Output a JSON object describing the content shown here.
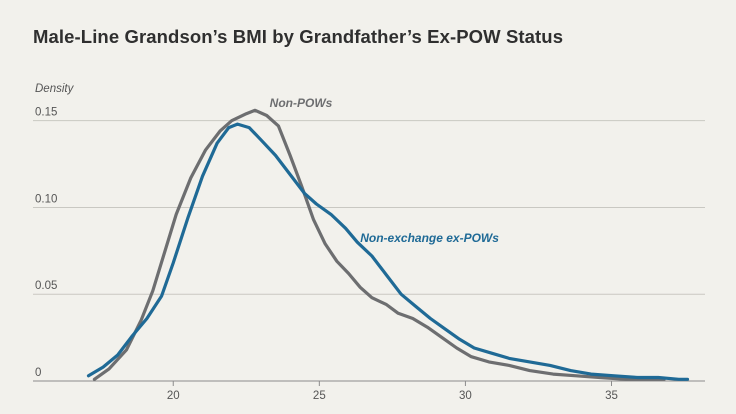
{
  "chart_data": {
    "type": "line",
    "title": "Male-Line Grandson’s BMI by Grandfather’s Ex-POW Status",
    "ylabel": "Density",
    "xlabel": "",
    "xlim": [
      15.2,
      38.2
    ],
    "ylim": [
      0,
      0.155
    ],
    "x_ticks": [
      20,
      25,
      30,
      35
    ],
    "x_tick_labels": [
      "20",
      "25",
      "30",
      "35"
    ],
    "y_ticks": [
      0,
      0.05,
      0.1,
      0.15
    ],
    "y_tick_labels": [
      "0",
      "0.05",
      "0.10",
      "0.15"
    ],
    "grid": "horizontal",
    "series": [
      {
        "name": "Non-POWs",
        "color": "#6d6e70",
        "points": [
          [
            17.3,
            0.001
          ],
          [
            17.8,
            0.007
          ],
          [
            18.4,
            0.018
          ],
          [
            18.9,
            0.035
          ],
          [
            19.3,
            0.052
          ],
          [
            19.7,
            0.074
          ],
          [
            20.1,
            0.096
          ],
          [
            20.6,
            0.117
          ],
          [
            21.1,
            0.133
          ],
          [
            21.6,
            0.144
          ],
          [
            22.0,
            0.15
          ],
          [
            22.5,
            0.154
          ],
          [
            22.8,
            0.156
          ],
          [
            23.2,
            0.153
          ],
          [
            23.6,
            0.147
          ],
          [
            24.0,
            0.13
          ],
          [
            24.4,
            0.112
          ],
          [
            24.8,
            0.093
          ],
          [
            25.2,
            0.079
          ],
          [
            25.6,
            0.069
          ],
          [
            26.0,
            0.062
          ],
          [
            26.4,
            0.054
          ],
          [
            26.8,
            0.048
          ],
          [
            27.3,
            0.044
          ],
          [
            27.7,
            0.039
          ],
          [
            28.2,
            0.036
          ],
          [
            28.7,
            0.031
          ],
          [
            29.2,
            0.025
          ],
          [
            29.7,
            0.019
          ],
          [
            30.2,
            0.014
          ],
          [
            30.8,
            0.011
          ],
          [
            31.5,
            0.009
          ],
          [
            32.2,
            0.006
          ],
          [
            33.0,
            0.004
          ],
          [
            33.8,
            0.003
          ],
          [
            34.6,
            0.002
          ],
          [
            35.5,
            0.001
          ],
          [
            36.2,
            0.001
          ],
          [
            36.8,
            0.001
          ]
        ]
      },
      {
        "name": "Non-exchange ex-POWs",
        "color": "#1f6a96",
        "points": [
          [
            17.1,
            0.003
          ],
          [
            17.6,
            0.008
          ],
          [
            18.1,
            0.015
          ],
          [
            18.6,
            0.026
          ],
          [
            19.1,
            0.036
          ],
          [
            19.6,
            0.049
          ],
          [
            20.0,
            0.068
          ],
          [
            20.5,
            0.094
          ],
          [
            21.0,
            0.118
          ],
          [
            21.5,
            0.137
          ],
          [
            21.9,
            0.146
          ],
          [
            22.2,
            0.148
          ],
          [
            22.6,
            0.146
          ],
          [
            23.0,
            0.139
          ],
          [
            23.5,
            0.13
          ],
          [
            24.0,
            0.119
          ],
          [
            24.5,
            0.108
          ],
          [
            24.9,
            0.102
          ],
          [
            25.4,
            0.096
          ],
          [
            25.9,
            0.088
          ],
          [
            26.3,
            0.08
          ],
          [
            26.8,
            0.072
          ],
          [
            27.3,
            0.061
          ],
          [
            27.8,
            0.05
          ],
          [
            28.3,
            0.043
          ],
          [
            28.8,
            0.036
          ],
          [
            29.3,
            0.03
          ],
          [
            29.8,
            0.024
          ],
          [
            30.3,
            0.019
          ],
          [
            30.9,
            0.016
          ],
          [
            31.5,
            0.013
          ],
          [
            32.2,
            0.011
          ],
          [
            32.9,
            0.009
          ],
          [
            33.6,
            0.006
          ],
          [
            34.3,
            0.004
          ],
          [
            35.1,
            0.003
          ],
          [
            35.9,
            0.002
          ],
          [
            36.6,
            0.002
          ],
          [
            37.3,
            0.001
          ],
          [
            37.6,
            0.001
          ]
        ]
      }
    ]
  }
}
